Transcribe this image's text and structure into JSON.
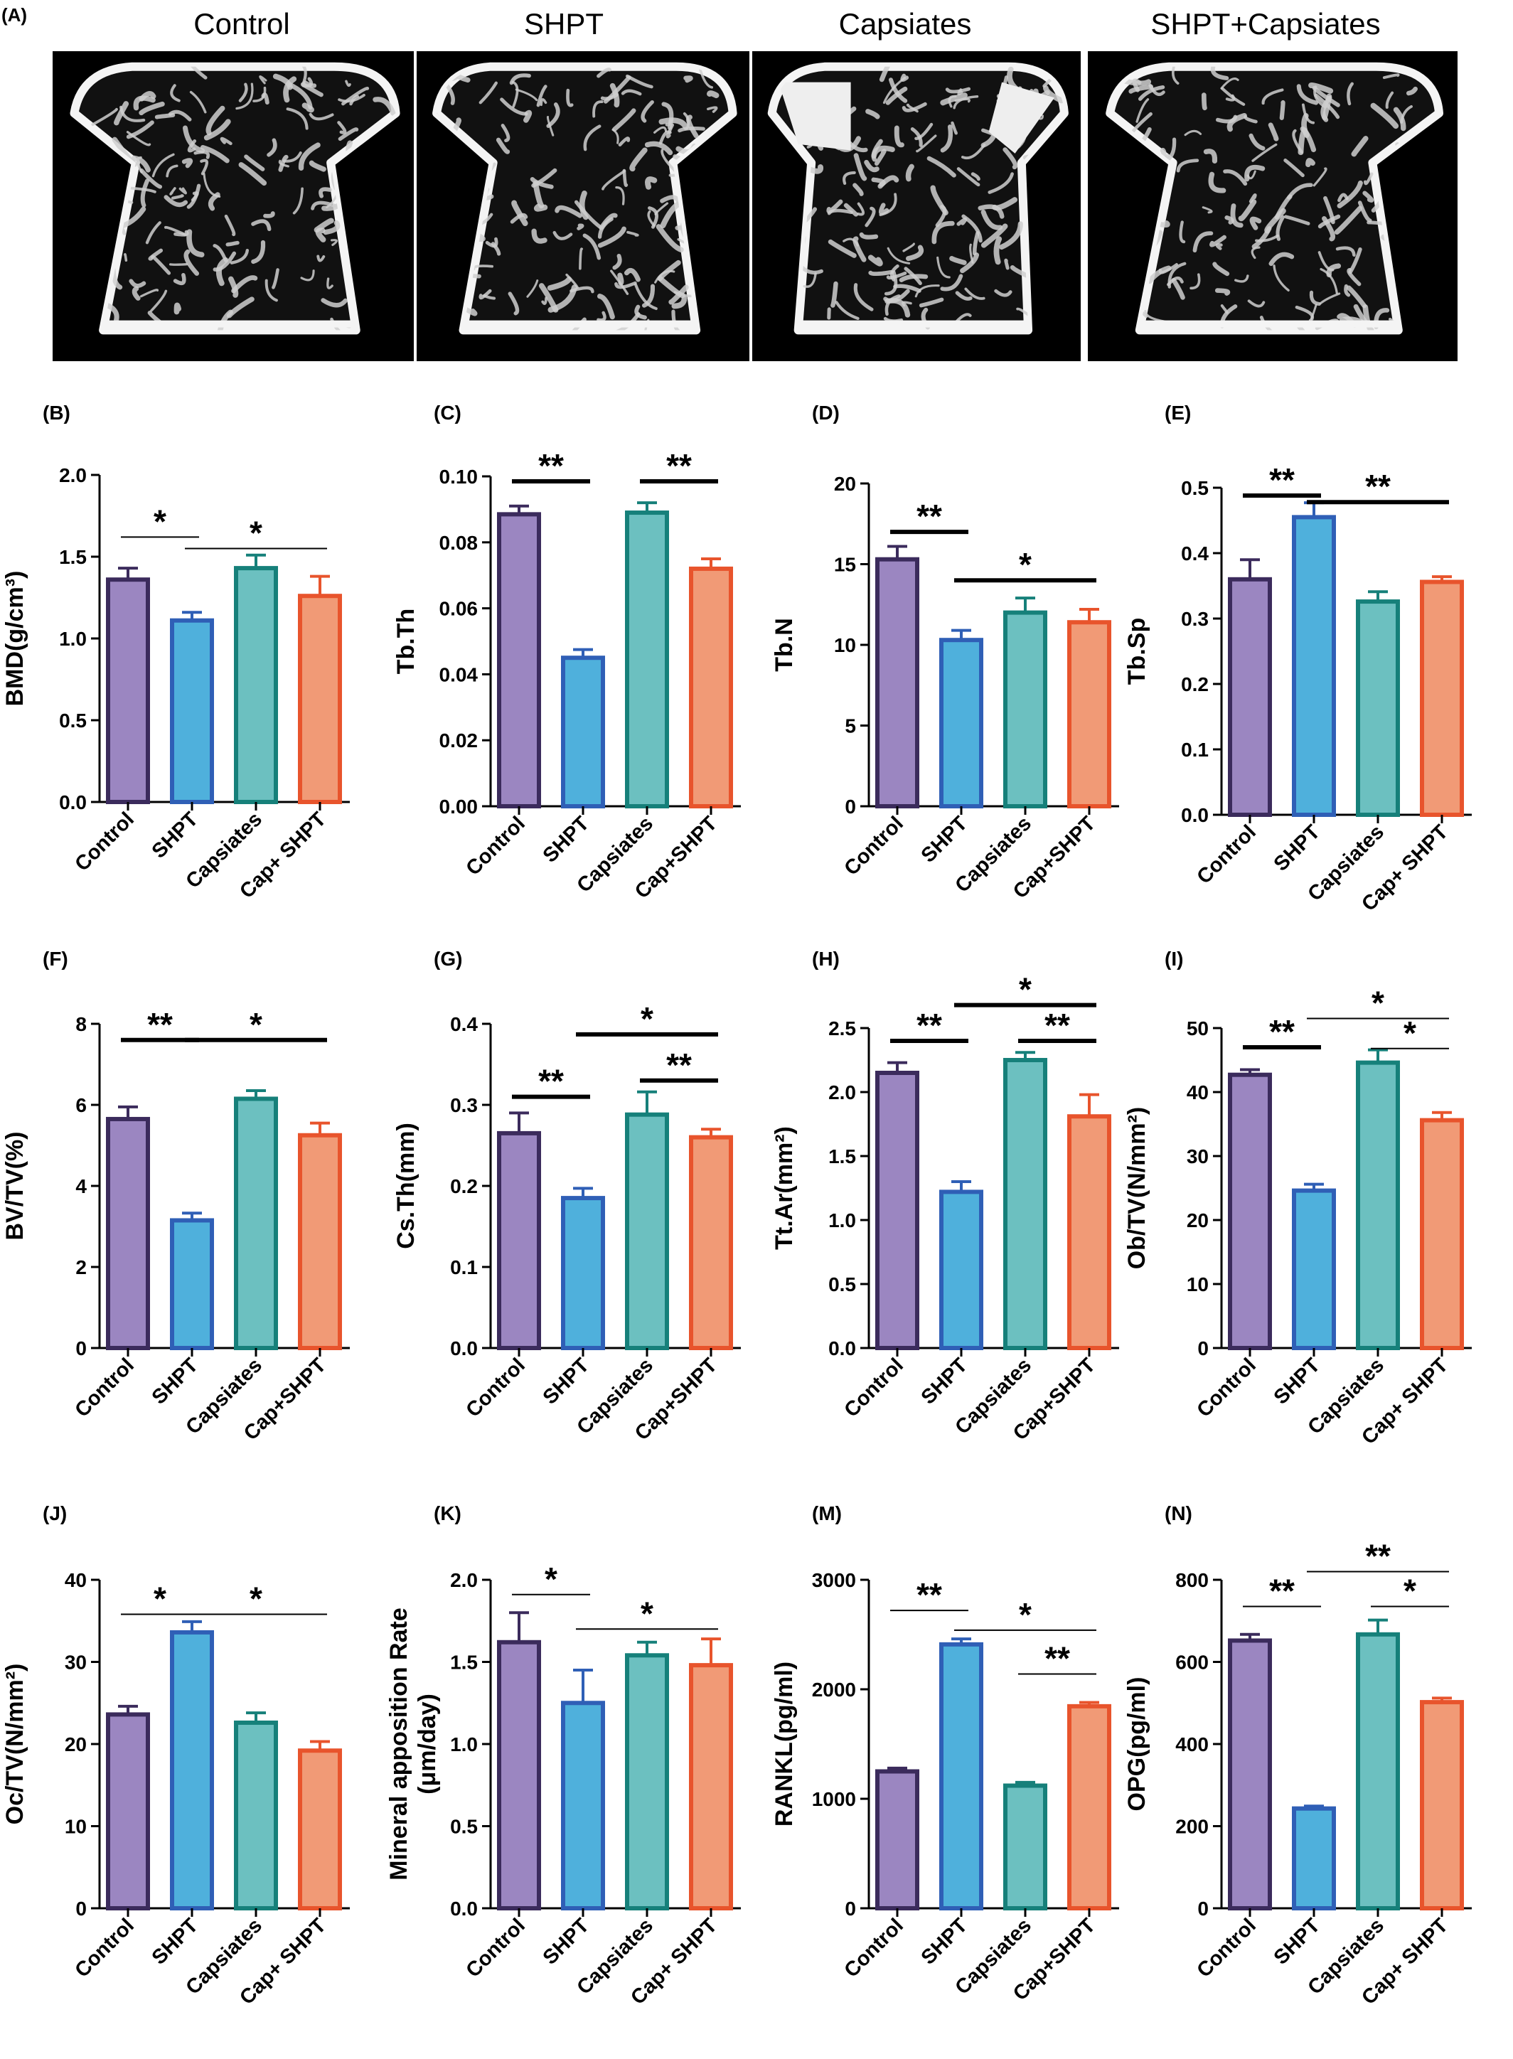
{
  "panel_a": {
    "label": "(A)",
    "groups": [
      "Control",
      "SHPT",
      "Capsiates",
      "SHPT+Capsiates"
    ]
  },
  "colors": {
    "control_fill": "#9b86c1",
    "control_edge": "#3b2b5c",
    "shpt_fill": "#4fb0dc",
    "shpt_edge": "#2f5fb6",
    "caps_fill": "#6cc0c0",
    "caps_edge": "#16807a",
    "combo_fill": "#f19a76",
    "combo_edge": "#e8542c"
  },
  "chart_data": [
    {
      "panel": "(B)",
      "type": "bar",
      "ylabel": "BMD(g/cm³)",
      "categories": [
        "Control",
        "SHPT",
        "Capsiates",
        "Cap+ SHPT"
      ],
      "values": [
        1.36,
        1.11,
        1.43,
        1.26
      ],
      "errors": [
        0.07,
        0.05,
        0.08,
        0.12
      ],
      "ylim": [
        0,
        2.0
      ],
      "ticks": [
        0.0,
        0.5,
        1.0,
        1.5,
        2.0
      ],
      "tick_labels": [
        "0.0",
        "0.5",
        "1.0",
        "1.5",
        "2.0"
      ],
      "significance": [
        {
          "from": 0,
          "to": 1,
          "label": "*",
          "y": 1.62
        },
        {
          "from": 1,
          "to": 3,
          "label": "*",
          "y": 1.55
        }
      ]
    },
    {
      "panel": "(C)",
      "type": "bar",
      "ylabel": "Tb.Th",
      "categories": [
        "Control",
        "SHPT",
        "Capsiates",
        "Cap+SHPT"
      ],
      "values": [
        0.0885,
        0.045,
        0.089,
        0.072
      ],
      "errors": [
        0.0025,
        0.0025,
        0.003,
        0.003
      ],
      "ylim": [
        0,
        0.1
      ],
      "ticks": [
        0,
        0.02,
        0.04,
        0.06,
        0.08,
        0.1
      ],
      "tick_labels": [
        "0.00",
        "0.02",
        "0.04",
        "0.06",
        "0.08",
        "0.10"
      ],
      "significance": [
        {
          "from": 0,
          "to": 1,
          "label": "**",
          "y": 0.0985
        },
        {
          "from": 2,
          "to": 3,
          "label": "**",
          "y": 0.0985
        }
      ]
    },
    {
      "panel": "(D)",
      "type": "bar",
      "ylabel": "Tb.N",
      "categories": [
        "Control",
        "SHPT",
        "Capsiates",
        "Cap+SHPT"
      ],
      "values": [
        15.3,
        10.3,
        12.0,
        11.4
      ],
      "errors": [
        0.8,
        0.6,
        0.9,
        0.8
      ],
      "ylim": [
        0,
        20
      ],
      "ticks": [
        0,
        5,
        10,
        15,
        20
      ],
      "tick_labels": [
        "0",
        "5",
        "10",
        "15",
        "20"
      ],
      "significance": [
        {
          "from": 0,
          "to": 1,
          "label": "**",
          "y": 17.0
        },
        {
          "from": 1,
          "to": 3,
          "label": "*",
          "y": 14.0
        }
      ]
    },
    {
      "panel": "(E)",
      "type": "bar",
      "ylabel": "Tb.Sp",
      "categories": [
        "Control",
        "SHPT",
        "Capsiates",
        "Cap+ SHPT"
      ],
      "values": [
        0.36,
        0.455,
        0.326,
        0.356
      ],
      "errors": [
        0.03,
        0.022,
        0.015,
        0.008
      ],
      "ylim": [
        0,
        0.5
      ],
      "ticks": [
        0.0,
        0.1,
        0.2,
        0.3,
        0.4,
        0.5
      ],
      "tick_labels": [
        "0.0",
        "0.1",
        "0.2",
        "0.3",
        "0.4",
        "0.5"
      ],
      "significance": [
        {
          "from": 0,
          "to": 1,
          "label": "**",
          "y": 0.488
        },
        {
          "from": 1,
          "to": 3,
          "label": "**",
          "y": 0.478
        }
      ]
    },
    {
      "panel": "(F)",
      "type": "bar",
      "ylabel": "BV/TV(%)",
      "categories": [
        "Control",
        "SHPT",
        "Capsiates",
        "Cap+SHPT"
      ],
      "values": [
        5.65,
        3.15,
        6.15,
        5.25
      ],
      "errors": [
        0.3,
        0.18,
        0.2,
        0.3
      ],
      "ylim": [
        0,
        8
      ],
      "ticks": [
        0,
        2,
        4,
        6,
        8
      ],
      "tick_labels": [
        "0",
        "2",
        "4",
        "6",
        "8"
      ],
      "significance": [
        {
          "from": 0,
          "to": 1,
          "label": "**",
          "y": 7.6
        },
        {
          "from": 1,
          "to": 3,
          "label": "*",
          "y": 7.6
        }
      ]
    },
    {
      "panel": "(G)",
      "type": "bar",
      "ylabel": "Cs.Th(mm)",
      "categories": [
        "Control",
        "SHPT",
        "Capsiates",
        "Cap+SHPT"
      ],
      "values": [
        0.265,
        0.185,
        0.288,
        0.26
      ],
      "errors": [
        0.025,
        0.012,
        0.028,
        0.01
      ],
      "ylim": [
        0,
        0.4
      ],
      "ticks": [
        0.0,
        0.1,
        0.2,
        0.3,
        0.4
      ],
      "tick_labels": [
        "0.0",
        "0.1",
        "0.2",
        "0.3",
        "0.4"
      ],
      "significance": [
        {
          "from": 0,
          "to": 1,
          "label": "**",
          "y": 0.31
        },
        {
          "from": 2,
          "to": 3,
          "label": "**",
          "y": 0.33
        },
        {
          "from": 1,
          "to": 3,
          "label": "*",
          "y": 0.387
        }
      ]
    },
    {
      "panel": "(H)",
      "type": "bar",
      "ylabel": "Tt.Ar(mm²)",
      "categories": [
        "Control",
        "SHPT",
        "Capsiates",
        "Cap+SHPT"
      ],
      "values": [
        2.15,
        1.22,
        2.25,
        1.81
      ],
      "errors": [
        0.08,
        0.08,
        0.06,
        0.17
      ],
      "ylim": [
        0,
        2.5
      ],
      "ticks": [
        0.0,
        0.5,
        1.0,
        1.5,
        2.0,
        2.5
      ],
      "tick_labels": [
        "0.0",
        "0.5",
        "1.0",
        "1.5",
        "2.0",
        "2.5"
      ],
      "significance": [
        {
          "from": 0,
          "to": 1,
          "label": "**",
          "y": 2.4
        },
        {
          "from": 2,
          "to": 3,
          "label": "**",
          "y": 2.4
        },
        {
          "from": 1,
          "to": 3,
          "label": "*",
          "y": 2.68
        }
      ]
    },
    {
      "panel": "(I)",
      "type": "bar",
      "ylabel": "Ob/TV(N/mm²)",
      "categories": [
        "Control",
        "SHPT",
        "Capsiates",
        "Cap+ SHPT"
      ],
      "values": [
        42.7,
        24.6,
        44.6,
        35.6
      ],
      "errors": [
        0.8,
        1.0,
        2.0,
        1.2
      ],
      "ylim": [
        0,
        50
      ],
      "ticks": [
        0,
        10,
        20,
        30,
        40,
        50
      ],
      "tick_labels": [
        "0",
        "10",
        "20",
        "30",
        "40",
        "50"
      ],
      "significance": [
        {
          "from": 0,
          "to": 1,
          "label": "**",
          "y": 47.0
        },
        {
          "from": 2,
          "to": 3,
          "label": "*",
          "y": 46.8
        },
        {
          "from": 1,
          "to": 3,
          "label": "*",
          "y": 51.5
        }
      ]
    },
    {
      "panel": "(J)",
      "type": "bar",
      "ylabel": "Oc/TV(N/mm²)",
      "categories": [
        "Control",
        "SHPT",
        "Capsiates",
        "Cap+ SHPT"
      ],
      "values": [
        23.6,
        33.6,
        22.6,
        19.2
      ],
      "errors": [
        1.0,
        1.3,
        1.2,
        1.1
      ],
      "ylim": [
        0,
        40
      ],
      "ticks": [
        0,
        10,
        20,
        30,
        40
      ],
      "tick_labels": [
        "0",
        "10",
        "20",
        "30",
        "40"
      ],
      "significance": [
        {
          "from": 0,
          "to": 1,
          "label": "*",
          "y": 35.8
        },
        {
          "from": 1,
          "to": 3,
          "label": "*",
          "y": 35.8
        }
      ]
    },
    {
      "panel": "(K)",
      "type": "bar",
      "ylabel": "Mineral apposition Rate",
      "ylabel2": "(μm/day)",
      "categories": [
        "Control",
        "SHPT",
        "Capsiates",
        "Cap+ SHPT"
      ],
      "values": [
        1.62,
        1.25,
        1.54,
        1.48
      ],
      "errors": [
        0.18,
        0.2,
        0.08,
        0.16
      ],
      "ylim": [
        0,
        2.0
      ],
      "ticks": [
        0.0,
        0.5,
        1.0,
        1.5,
        2.0
      ],
      "tick_labels": [
        "0.0",
        "0.5",
        "1.0",
        "1.5",
        "2.0"
      ],
      "significance": [
        {
          "from": 0,
          "to": 1,
          "label": "*",
          "y": 1.91
        },
        {
          "from": 1,
          "to": 3,
          "label": "*",
          "y": 1.7
        }
      ]
    },
    {
      "panel": "(M)",
      "type": "bar",
      "ylabel": "RANKL(pg/ml)",
      "categories": [
        "Control",
        "SHPT",
        "Capsiates",
        "Cap+SHPT"
      ],
      "values": [
        1250,
        2410,
        1120,
        1845
      ],
      "errors": [
        30,
        50,
        30,
        35
      ],
      "ylim": [
        0,
        3000
      ],
      "ticks": [
        0,
        1000,
        2000,
        3000
      ],
      "tick_labels": [
        "0",
        "1000",
        "2000",
        "3000"
      ],
      "significance": [
        {
          "from": 0,
          "to": 1,
          "label": "**",
          "y": 2720
        },
        {
          "from": 2,
          "to": 3,
          "label": "**",
          "y": 2140
        },
        {
          "from": 1,
          "to": 3,
          "label": "*",
          "y": 2540
        }
      ]
    },
    {
      "panel": "(N)",
      "type": "bar",
      "ylabel": "OPG(pg/ml)",
      "categories": [
        "Control",
        "SHPT",
        "Capsiates",
        "Cap+ SHPT"
      ],
      "values": [
        652,
        243,
        667,
        502
      ],
      "errors": [
        15,
        6,
        35,
        10
      ],
      "ylim": [
        0,
        800
      ],
      "ticks": [
        0,
        200,
        400,
        600,
        800
      ],
      "tick_labels": [
        "0",
        "200",
        "400",
        "600",
        "800"
      ],
      "significance": [
        {
          "from": 0,
          "to": 1,
          "label": "**",
          "y": 735
        },
        {
          "from": 2,
          "to": 3,
          "label": "*",
          "y": 735
        },
        {
          "from": 1,
          "to": 3,
          "label": "**",
          "y": 820
        }
      ]
    }
  ]
}
